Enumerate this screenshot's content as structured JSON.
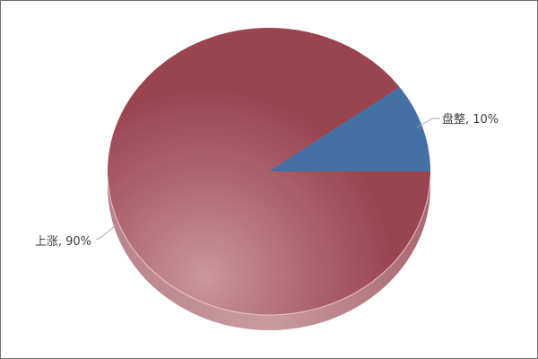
{
  "chart_data": {
    "type": "pie",
    "effect": "3d-glossy",
    "start_angle_deg": 36,
    "direction": "ccw",
    "unit": "%",
    "slices": [
      {
        "name": "上涨",
        "value": 90,
        "data_label": "上涨, 90%",
        "color": "#9a4450",
        "highlight_color": "#cb969c",
        "mid_color": "#b06a73"
      },
      {
        "name": "盘整",
        "value": 10,
        "data_label": "盘整, 10%",
        "color": "#4470a4"
      }
    ],
    "side_colors": [
      "#b8828a",
      "#cb9aa0",
      "#a96870"
    ],
    "rim_highlight_color": "#edd0d3",
    "label_color": "#3f3f3f",
    "leader_line_color": "#a6a6a6",
    "background": "#ffffff",
    "border_color": "#6f6f6f",
    "legend": "none"
  }
}
